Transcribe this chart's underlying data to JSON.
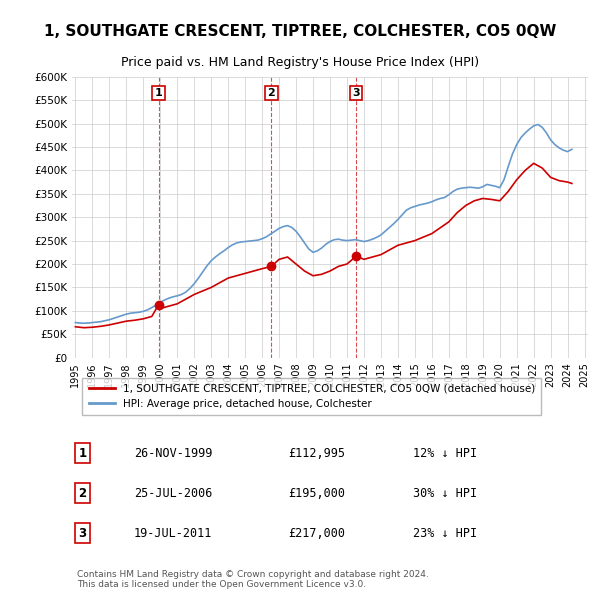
{
  "title": "1, SOUTHGATE CRESCENT, TIPTREE, COLCHESTER, CO5 0QW",
  "subtitle": "Price paid vs. HM Land Registry's House Price Index (HPI)",
  "title_fontsize": 11,
  "subtitle_fontsize": 9,
  "background_color": "#ffffff",
  "grid_color": "#cccccc",
  "ylim": [
    0,
    600000
  ],
  "yticks": [
    0,
    50000,
    100000,
    150000,
    200000,
    250000,
    300000,
    350000,
    400000,
    450000,
    500000,
    550000,
    600000
  ],
  "ytick_labels": [
    "£0",
    "£50K",
    "£100K",
    "£150K",
    "£200K",
    "£250K",
    "£300K",
    "£350K",
    "£400K",
    "£450K",
    "£500K",
    "£550K",
    "£600K"
  ],
  "red_line_label": "1, SOUTHGATE CRESCENT, TIPTREE, COLCHESTER, CO5 0QW (detached house)",
  "blue_line_label": "HPI: Average price, detached house, Colchester",
  "red_color": "#cc0000",
  "blue_color": "#6699cc",
  "transactions": [
    {
      "num": 1,
      "date": "26-NOV-1999",
      "price": 112995,
      "pct": "12%",
      "year_x": 1999.9
    },
    {
      "num": 2,
      "date": "25-JUL-2006",
      "price": 195000,
      "pct": "30%",
      "year_x": 2006.55
    },
    {
      "num": 3,
      "date": "19-JUL-2011",
      "price": 217000,
      "pct": "23%",
      "year_x": 2011.55
    }
  ],
  "copyright_text": "Contains HM Land Registry data © Crown copyright and database right 2024.\nThis data is licensed under the Open Government Licence v3.0.",
  "hpi_data": {
    "years": [
      1995.0,
      1995.25,
      1995.5,
      1995.75,
      1996.0,
      1996.25,
      1996.5,
      1996.75,
      1997.0,
      1997.25,
      1997.5,
      1997.75,
      1998.0,
      1998.25,
      1998.5,
      1998.75,
      1999.0,
      1999.25,
      1999.5,
      1999.75,
      2000.0,
      2000.25,
      2000.5,
      2000.75,
      2001.0,
      2001.25,
      2001.5,
      2001.75,
      2002.0,
      2002.25,
      2002.5,
      2002.75,
      2003.0,
      2003.25,
      2003.5,
      2003.75,
      2004.0,
      2004.25,
      2004.5,
      2004.75,
      2005.0,
      2005.25,
      2005.5,
      2005.75,
      2006.0,
      2006.25,
      2006.5,
      2006.75,
      2007.0,
      2007.25,
      2007.5,
      2007.75,
      2008.0,
      2008.25,
      2008.5,
      2008.75,
      2009.0,
      2009.25,
      2009.5,
      2009.75,
      2010.0,
      2010.25,
      2010.5,
      2010.75,
      2011.0,
      2011.25,
      2011.5,
      2011.75,
      2012.0,
      2012.25,
      2012.5,
      2012.75,
      2013.0,
      2013.25,
      2013.5,
      2013.75,
      2014.0,
      2014.25,
      2014.5,
      2014.75,
      2015.0,
      2015.25,
      2015.5,
      2015.75,
      2016.0,
      2016.25,
      2016.5,
      2016.75,
      2017.0,
      2017.25,
      2017.5,
      2017.75,
      2018.0,
      2018.25,
      2018.5,
      2018.75,
      2019.0,
      2019.25,
      2019.5,
      2019.75,
      2020.0,
      2020.25,
      2020.5,
      2020.75,
      2021.0,
      2021.25,
      2021.5,
      2021.75,
      2022.0,
      2022.25,
      2022.5,
      2022.75,
      2023.0,
      2023.25,
      2023.5,
      2023.75,
      2024.0,
      2024.25
    ],
    "values": [
      75000,
      74000,
      73500,
      74000,
      75000,
      76000,
      77000,
      79000,
      81000,
      84000,
      87000,
      90000,
      93000,
      95000,
      96000,
      97000,
      99000,
      102000,
      107000,
      112000,
      118000,
      123000,
      127000,
      130000,
      132000,
      135000,
      140000,
      148000,
      158000,
      170000,
      183000,
      196000,
      207000,
      215000,
      222000,
      228000,
      235000,
      241000,
      245000,
      247000,
      248000,
      249000,
      250000,
      251000,
      254000,
      258000,
      264000,
      270000,
      276000,
      280000,
      282000,
      278000,
      270000,
      258000,
      245000,
      232000,
      225000,
      228000,
      234000,
      242000,
      248000,
      252000,
      253000,
      251000,
      250000,
      251000,
      252000,
      250000,
      248000,
      250000,
      253000,
      257000,
      262000,
      270000,
      278000,
      286000,
      295000,
      305000,
      315000,
      320000,
      323000,
      326000,
      328000,
      330000,
      333000,
      337000,
      340000,
      342000,
      348000,
      355000,
      360000,
      362000,
      363000,
      364000,
      363000,
      362000,
      365000,
      370000,
      368000,
      366000,
      363000,
      380000,
      408000,
      435000,
      455000,
      470000,
      480000,
      488000,
      495000,
      498000,
      492000,
      480000,
      465000,
      455000,
      448000,
      443000,
      440000,
      445000
    ]
  },
  "red_data": {
    "years": [
      1995.0,
      1995.5,
      1996.0,
      1996.5,
      1997.0,
      1997.5,
      1998.0,
      1998.5,
      1999.0,
      1999.5,
      1999.9,
      2000.0,
      2000.5,
      2001.0,
      2002.0,
      2003.0,
      2004.0,
      2005.0,
      2006.0,
      2006.55,
      2007.0,
      2007.5,
      2008.0,
      2008.5,
      2009.0,
      2009.5,
      2010.0,
      2010.5,
      2011.0,
      2011.55,
      2012.0,
      2013.0,
      2014.0,
      2015.0,
      2016.0,
      2017.0,
      2017.5,
      2018.0,
      2018.5,
      2019.0,
      2019.5,
      2020.0,
      2020.5,
      2021.0,
      2021.5,
      2022.0,
      2022.5,
      2023.0,
      2023.5,
      2024.0,
      2024.25
    ],
    "values": [
      66000,
      64000,
      65000,
      67000,
      70000,
      74000,
      78000,
      80000,
      83000,
      88000,
      112995,
      105000,
      110000,
      115000,
      135000,
      150000,
      170000,
      180000,
      190000,
      195000,
      210000,
      215000,
      200000,
      185000,
      175000,
      178000,
      185000,
      195000,
      200000,
      217000,
      210000,
      220000,
      240000,
      250000,
      265000,
      290000,
      310000,
      325000,
      335000,
      340000,
      338000,
      335000,
      355000,
      380000,
      400000,
      415000,
      405000,
      385000,
      378000,
      375000,
      372000
    ]
  },
  "x_ticks": [
    1995,
    1996,
    1997,
    1998,
    1999,
    2000,
    2001,
    2002,
    2003,
    2004,
    2005,
    2006,
    2007,
    2008,
    2009,
    2010,
    2011,
    2012,
    2013,
    2014,
    2015,
    2016,
    2017,
    2018,
    2019,
    2020,
    2021,
    2022,
    2023,
    2024,
    2025
  ],
  "x_tick_labels": [
    "1995",
    "1996",
    "1997",
    "1998",
    "1999",
    "2000",
    "2001",
    "2002",
    "2003",
    "2004",
    "2005",
    "2006",
    "2007",
    "2008",
    "2009",
    "2010",
    "2011",
    "2012",
    "2013",
    "2014",
    "2015",
    "2016",
    "2017",
    "2018",
    "2019",
    "2020",
    "2021",
    "2022",
    "2023",
    "2024",
    "2025"
  ],
  "xlim": [
    1994.8,
    2025.2
  ]
}
